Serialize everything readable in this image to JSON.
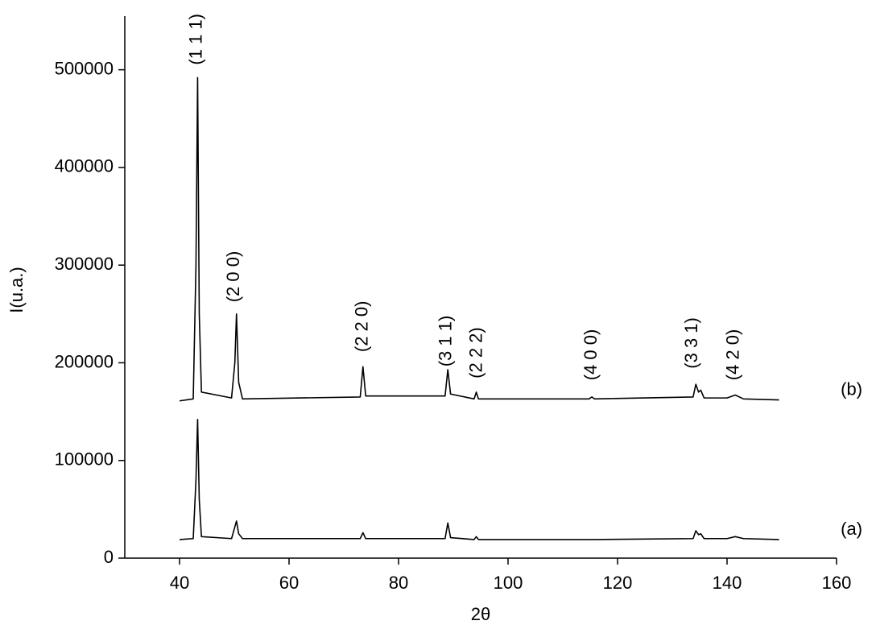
{
  "chart_data": {
    "type": "line",
    "x_label": "2θ",
    "y_label": "I(u.a.)",
    "xlim": [
      30,
      160
    ],
    "xticks": [
      40,
      60,
      80,
      100,
      120,
      140,
      160
    ],
    "ylim": [
      0,
      550000
    ],
    "yticks": [
      0,
      100000,
      200000,
      300000,
      400000,
      500000
    ],
    "x": [
      40,
      42.5,
      43.0,
      43.3,
      43.6,
      44,
      49.5,
      50.1,
      50.4,
      50.8,
      51.5,
      73,
      73.5,
      74,
      88.5,
      89,
      89.5,
      93.8,
      94.2,
      94.6,
      114.8,
      115.3,
      115.8,
      133.8,
      134.3,
      134.8,
      135.2,
      135.8,
      140,
      141.5,
      143,
      149.5
    ],
    "series": [
      {
        "name": "(b)",
        "color": "#000000",
        "values": [
          161000,
          163000,
          300000,
          492000,
          250000,
          170000,
          164000,
          200000,
          250000,
          180000,
          163000,
          165000,
          196000,
          166000,
          166000,
          193000,
          168000,
          163000,
          170000,
          163000,
          163000,
          165000,
          163000,
          165000,
          178000,
          170000,
          172000,
          164000,
          164000,
          167000,
          163000,
          162000
        ]
      },
      {
        "name": "(a)",
        "color": "#000000",
        "values": [
          19000,
          20000,
          80000,
          142000,
          60000,
          22000,
          20000,
          32000,
          38000,
          25000,
          20000,
          20000,
          26000,
          20000,
          20000,
          36000,
          21000,
          19000,
          22000,
          19000,
          19000,
          19000,
          19000,
          20000,
          28000,
          24000,
          25000,
          20000,
          20000,
          22000,
          20000,
          19000
        ]
      }
    ],
    "annotations": [
      {
        "text": "(1 1 1)",
        "x": 43.2,
        "y": 505000
      },
      {
        "text": "(2 0 0)",
        "x": 50,
        "y": 262000
      },
      {
        "text": "(2 2 0)",
        "x": 73.5,
        "y": 211000
      },
      {
        "text": "(3 1 1)",
        "x": 88.8,
        "y": 196000
      },
      {
        "text": "(2 2 2)",
        "x": 94.4,
        "y": 184000
      },
      {
        "text": "(4 0 0)",
        "x": 115.3,
        "y": 182000
      },
      {
        "text": "(3 3 1)",
        "x": 133.7,
        "y": 194000
      },
      {
        "text": "(4 2 0)",
        "x": 141.3,
        "y": 182000
      }
    ]
  }
}
